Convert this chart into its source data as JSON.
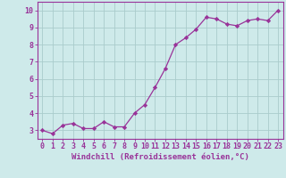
{
  "x": [
    0,
    1,
    2,
    3,
    4,
    5,
    6,
    7,
    8,
    9,
    10,
    11,
    12,
    13,
    14,
    15,
    16,
    17,
    18,
    19,
    20,
    21,
    22,
    23
  ],
  "y": [
    3.0,
    2.8,
    3.3,
    3.4,
    3.1,
    3.1,
    3.5,
    3.2,
    3.2,
    4.0,
    4.5,
    5.5,
    6.6,
    8.0,
    8.4,
    8.9,
    9.6,
    9.5,
    9.2,
    9.1,
    9.4,
    9.5,
    9.4,
    10.0
  ],
  "line_color": "#993399",
  "marker": "D",
  "markersize": 2.2,
  "linewidth": 0.9,
  "bg_color": "#ceeaea",
  "grid_color": "#aacccc",
  "xlabel": "Windchill (Refroidissement éolien,°C)",
  "xlim": [
    -0.5,
    23.5
  ],
  "ylim": [
    2.5,
    10.5
  ],
  "xticks": [
    0,
    1,
    2,
    3,
    4,
    5,
    6,
    7,
    8,
    9,
    10,
    11,
    12,
    13,
    14,
    15,
    16,
    17,
    18,
    19,
    20,
    21,
    22,
    23
  ],
  "yticks": [
    3,
    4,
    5,
    6,
    7,
    8,
    9,
    10
  ],
  "xlabel_fontsize": 6.5,
  "tick_fontsize": 6.0,
  "tick_color": "#993399",
  "label_color": "#993399",
  "spine_color": "#993399"
}
